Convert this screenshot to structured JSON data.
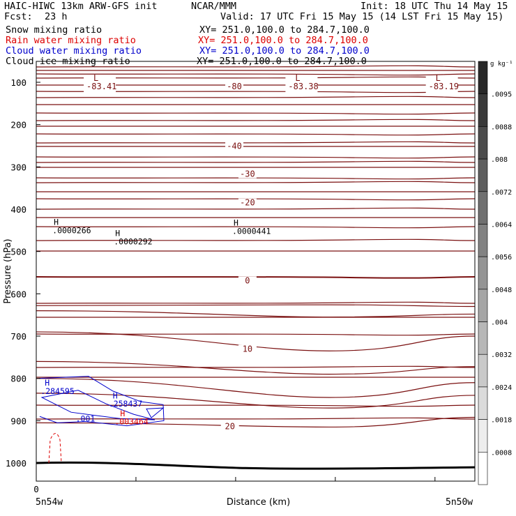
{
  "header": {
    "model_line": "HAIC-HIWC 13km ARW-GFS init",
    "org": "NCAR/MMM",
    "init_line": "Init: 18 UTC Thu 14 May 15",
    "fcst_label": "Fcst:",
    "fcst_value": "23 h",
    "valid_line": "Valid: 17 UTC Fri 15 May 15 (14 LST Fri 15 May 15)"
  },
  "fields": [
    {
      "name": "Snow mixing ratio",
      "xy": "XY= 251.0,100.0 to 284.7,100.0",
      "color": "#000000"
    },
    {
      "name": "Rain water mixing ratio",
      "xy": "XY= 251.0,100.0 to 284.7,100.0",
      "color": "#dd0000"
    },
    {
      "name": "Cloud water mixing ratio",
      "xy": "XY= 251.0,100.0 to 284.7,100.0",
      "color": "#0000cc"
    },
    {
      "name": "Cloud ice mixing ratio",
      "xy": "XY= 251.0,100.0 to 284.7,100.0",
      "color": "#000000"
    }
  ],
  "chart_data": {
    "type": "contour cross-section",
    "ylabel": "Pressure (hPa)",
    "xlabel": "Distance (km)",
    "yticks": [
      100,
      200,
      300,
      400,
      500,
      600,
      700,
      800,
      900,
      1000
    ],
    "ylim": [
      1050,
      50
    ],
    "x_tick_label": "0",
    "x_left_label": "5n54w",
    "x_right_label": "5n50w",
    "temperature_labels": [
      {
        "text": "-80",
        "p": 113
      },
      {
        "text": "-40",
        "p": 254
      },
      {
        "text": "-30",
        "p": 320
      },
      {
        "text": "-20",
        "p": 388
      },
      {
        "text": "0",
        "p": 572
      },
      {
        "text": "10",
        "p": 734
      },
      {
        "text": "20",
        "p": 917
      }
    ],
    "low_centers": [
      {
        "mark": "L",
        "value": "-83.41",
        "frac": 0.14
      },
      {
        "mark": "L",
        "value": "-83.38",
        "frac": 0.6
      },
      {
        "mark": "L",
        "value": "-83.19",
        "frac": 0.92
      }
    ],
    "snow_highs": [
      {
        "mark": "H",
        "value": ".0000266",
        "frac": 0.04,
        "p": 450
      },
      {
        "mark": "H",
        "value": ".0000292",
        "frac": 0.18,
        "p": 477
      },
      {
        "mark": "H",
        "value": ".0000441",
        "frac": 0.45,
        "p": 452
      }
    ],
    "cloud_water_labels": [
      {
        "mark": "H",
        "value": ".284595",
        "color": "#0000cc"
      },
      {
        "mark": "H",
        "value": ".258437",
        "color": "#0000cc"
      },
      {
        "mark": "",
        "value": ".001",
        "color": "#0000cc"
      }
    ],
    "rain_labels": [
      {
        "mark": "H",
        "value": ".003464",
        "color": "#dd0000"
      }
    ],
    "colorbar": {
      "unit": "g kg⁻¹",
      "labels": [
        ".0095",
        ".0088",
        ".008",
        ".0072",
        ".0064",
        ".0056",
        ".0048",
        ".004",
        ".0032",
        ".0024",
        ".0018",
        ".0008"
      ]
    },
    "grid": false
  }
}
